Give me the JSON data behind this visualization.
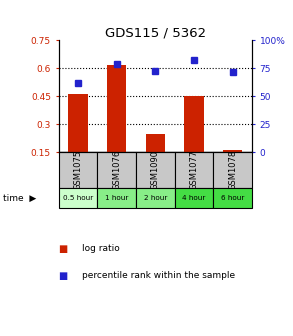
{
  "title": "GDS115 / 5362",
  "samples": [
    "GSM1075",
    "GSM1076",
    "GSM1090",
    "GSM1077",
    "GSM1078"
  ],
  "time_labels": [
    "0.5 hour",
    "1 hour",
    "2 hour",
    "4 hour",
    "6 hour"
  ],
  "log_ratios": [
    0.46,
    0.62,
    0.25,
    0.45,
    0.16
  ],
  "percentile_ranks": [
    62,
    79,
    73,
    82,
    72
  ],
  "bar_color": "#cc2200",
  "square_color": "#2222cc",
  "left_ylim": [
    0.15,
    0.75
  ],
  "right_ylim": [
    0,
    100
  ],
  "left_yticks": [
    0.15,
    0.3,
    0.45,
    0.6,
    0.75
  ],
  "right_yticks": [
    0,
    25,
    50,
    75,
    100
  ],
  "left_ytick_labels": [
    "0.15",
    "0.3",
    "0.45",
    "0.6",
    "0.75"
  ],
  "right_ytick_labels": [
    "0",
    "25",
    "50",
    "75",
    "100%"
  ],
  "hline_values": [
    0.3,
    0.45,
    0.6
  ],
  "gray_color": "#c8c8c8",
  "time_bg_colors": [
    "#ccffcc",
    "#88ee88",
    "#88ee88",
    "#44dd44",
    "#44dd44"
  ],
  "bar_width": 0.5
}
